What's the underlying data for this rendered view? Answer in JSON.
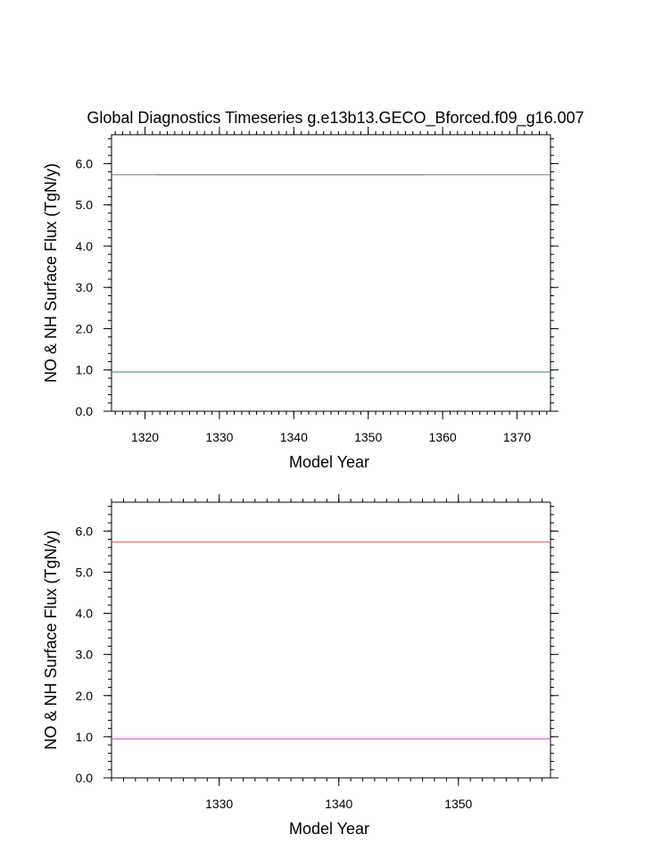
{
  "chart_data": [
    {
      "type": "line",
      "title": "Global Diagnostics Timeseries g.e13b13.GECO_Bforced.f09_g16.007",
      "xlabel": "Model Year",
      "ylabel": "NO & NH Surface Flux (TgN/y)",
      "xlim": [
        1315.5,
        1374.5
      ],
      "ylim": [
        0,
        6.7
      ],
      "xticks": [
        1320,
        1330,
        1340,
        1350,
        1360,
        1370
      ],
      "yticks": [
        0.0,
        1.0,
        2.0,
        3.0,
        4.0,
        5.0,
        6.0
      ],
      "xticklabels": [
        "1320",
        "1330",
        "1340",
        "1350",
        "1360",
        "1370"
      ],
      "yticklabels": [
        "0.0",
        "1.0",
        "2.0",
        "3.0",
        "4.0",
        "5.0",
        "6.0"
      ],
      "series": [
        {
          "color": "#8b1a1a",
          "x": [
            1321.5,
            1357.5
          ],
          "y": [
            5.73,
            5.73
          ]
        },
        {
          "color": "#7a7a7a",
          "x": [
            1315.5,
            1374.5
          ],
          "y": [
            5.73,
            5.73
          ]
        },
        {
          "color": "#a020f0",
          "x": [
            1321.5,
            1357.5
          ],
          "y": [
            0.95,
            0.95
          ]
        },
        {
          "color": "#2e8b57",
          "x": [
            1315.5,
            1374.5
          ],
          "y": [
            0.95,
            0.95
          ]
        }
      ]
    },
    {
      "type": "line",
      "title": "",
      "xlabel": "Model Year",
      "ylabel": "NO & NH Surface Flux (TgN/y)",
      "xlim": [
        1321,
        1357.7
      ],
      "ylim": [
        0,
        6.7
      ],
      "xticks": [
        1330,
        1340,
        1350
      ],
      "yticks": [
        0.0,
        1.0,
        2.0,
        3.0,
        4.0,
        5.0,
        6.0
      ],
      "xticklabels": [
        "1330",
        "1340",
        "1350"
      ],
      "yticklabels": [
        "0.0",
        "1.0",
        "2.0",
        "3.0",
        "4.0",
        "5.0",
        "6.0"
      ],
      "series": [
        {
          "color": "#e05050",
          "x": [
            1321,
            1357.7
          ],
          "y": [
            5.73,
            5.73
          ]
        },
        {
          "color": "#c040e0",
          "x": [
            1321,
            1357.7
          ],
          "y": [
            0.95,
            0.95
          ]
        }
      ]
    }
  ]
}
